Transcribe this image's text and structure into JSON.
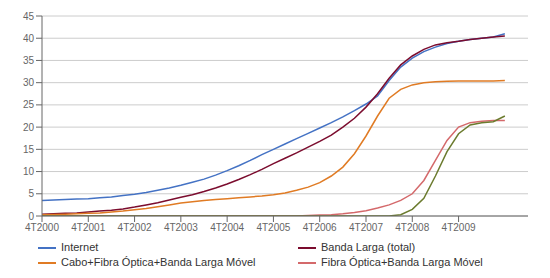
{
  "chart_data": {
    "type": "line",
    "x": [
      0,
      0.25,
      0.5,
      0.75,
      1,
      1.25,
      1.5,
      1.75,
      2,
      2.25,
      2.5,
      2.75,
      3,
      3.25,
      3.5,
      3.75,
      4,
      4.25,
      4.5,
      4.75,
      5,
      5.25,
      5.5,
      5.75,
      6,
      6.25,
      6.5,
      6.75,
      7,
      7.25,
      7.5,
      7.75,
      8,
      8.25,
      8.5,
      8.75,
      9,
      9.25,
      9.5,
      9.75,
      10
    ],
    "xlim": [
      0,
      10.5
    ],
    "xticks": [
      {
        "value": 0,
        "label": "4T2000"
      },
      {
        "value": 1,
        "label": "4T2001"
      },
      {
        "value": 2,
        "label": "4T2002"
      },
      {
        "value": 3,
        "label": "4T2003"
      },
      {
        "value": 4,
        "label": "4T2004"
      },
      {
        "value": 5,
        "label": "4T2005"
      },
      {
        "value": 6,
        "label": "4T2006"
      },
      {
        "value": 7,
        "label": "4T2007"
      },
      {
        "value": 8,
        "label": "4T2008"
      },
      {
        "value": 9,
        "label": "4T2009"
      }
    ],
    "ylim": [
      0,
      45
    ],
    "yticks": [
      0,
      5,
      10,
      15,
      20,
      25,
      30,
      35,
      40,
      45
    ],
    "grid": true,
    "legend": "bottom",
    "series": [
      {
        "name": "Internet",
        "color": "#4472C4",
        "values": [
          3.5,
          3.6,
          3.7,
          3.8,
          3.9,
          4.1,
          4.3,
          4.6,
          4.9,
          5.3,
          5.8,
          6.3,
          6.9,
          7.6,
          8.3,
          9.2,
          10.2,
          11.3,
          12.5,
          13.8,
          15.0,
          16.2,
          17.4,
          18.6,
          19.8,
          21.0,
          22.3,
          23.7,
          25.2,
          27.0,
          30.5,
          33.5,
          35.5,
          37.0,
          38.0,
          38.8,
          39.3,
          39.7,
          40.0,
          40.3,
          41.0
        ]
      },
      {
        "name": "Banda Larga (total)",
        "color": "#7B0C2E",
        "values": [
          0.4,
          0.5,
          0.6,
          0.7,
          0.9,
          1.1,
          1.3,
          1.6,
          2.0,
          2.5,
          3.0,
          3.6,
          4.2,
          4.8,
          5.5,
          6.3,
          7.2,
          8.2,
          9.3,
          10.5,
          11.8,
          13.0,
          14.2,
          15.5,
          16.8,
          18.2,
          20.0,
          22.0,
          24.5,
          27.5,
          31.0,
          34.0,
          36.0,
          37.5,
          38.5,
          39.0,
          39.3,
          39.7,
          40.0,
          40.3,
          40.5
        ]
      },
      {
        "name": "Cabo+Fibra Óptica+Banda Larga Móvel",
        "color": "#E07B24",
        "values": [
          0.3,
          0.35,
          0.4,
          0.5,
          0.6,
          0.7,
          0.9,
          1.1,
          1.4,
          1.7,
          2.1,
          2.5,
          2.9,
          3.2,
          3.5,
          3.7,
          3.9,
          4.1,
          4.3,
          4.5,
          4.8,
          5.2,
          5.8,
          6.5,
          7.5,
          9.0,
          11.0,
          14.0,
          18.0,
          22.5,
          26.5,
          28.5,
          29.5,
          30.0,
          30.2,
          30.3,
          30.4,
          30.4,
          30.4,
          30.4,
          30.5
        ]
      },
      {
        "name": "Fibra Óptica+Banda Larga Móvel",
        "color": "#D4696B",
        "values": [
          0.0,
          0.0,
          0.0,
          0.0,
          0.0,
          0.0,
          0.0,
          0.0,
          0.0,
          0.0,
          0.0,
          0.0,
          0.0,
          0.0,
          0.0,
          0.0,
          0.0,
          0.0,
          0.0,
          0.0,
          0.0,
          0.0,
          0.0,
          0.1,
          0.2,
          0.3,
          0.5,
          0.8,
          1.2,
          1.8,
          2.5,
          3.5,
          5.0,
          8.0,
          12.5,
          17.0,
          20.0,
          21.0,
          21.3,
          21.5,
          21.5
        ]
      },
      {
        "color": "#6B7B2E",
        "values": [
          0.0,
          0.0,
          0.0,
          0.0,
          0.0,
          0.0,
          0.0,
          0.0,
          0.0,
          0.0,
          0.0,
          0.0,
          0.0,
          0.0,
          0.0,
          0.0,
          0.0,
          0.0,
          0.0,
          0.0,
          0.0,
          0.0,
          0.0,
          0.0,
          0.0,
          0.0,
          0.0,
          0.0,
          0.0,
          0.0,
          0.0,
          0.3,
          1.5,
          4.0,
          9.0,
          14.5,
          18.5,
          20.5,
          21.0,
          21.2,
          22.5
        ]
      }
    ]
  }
}
